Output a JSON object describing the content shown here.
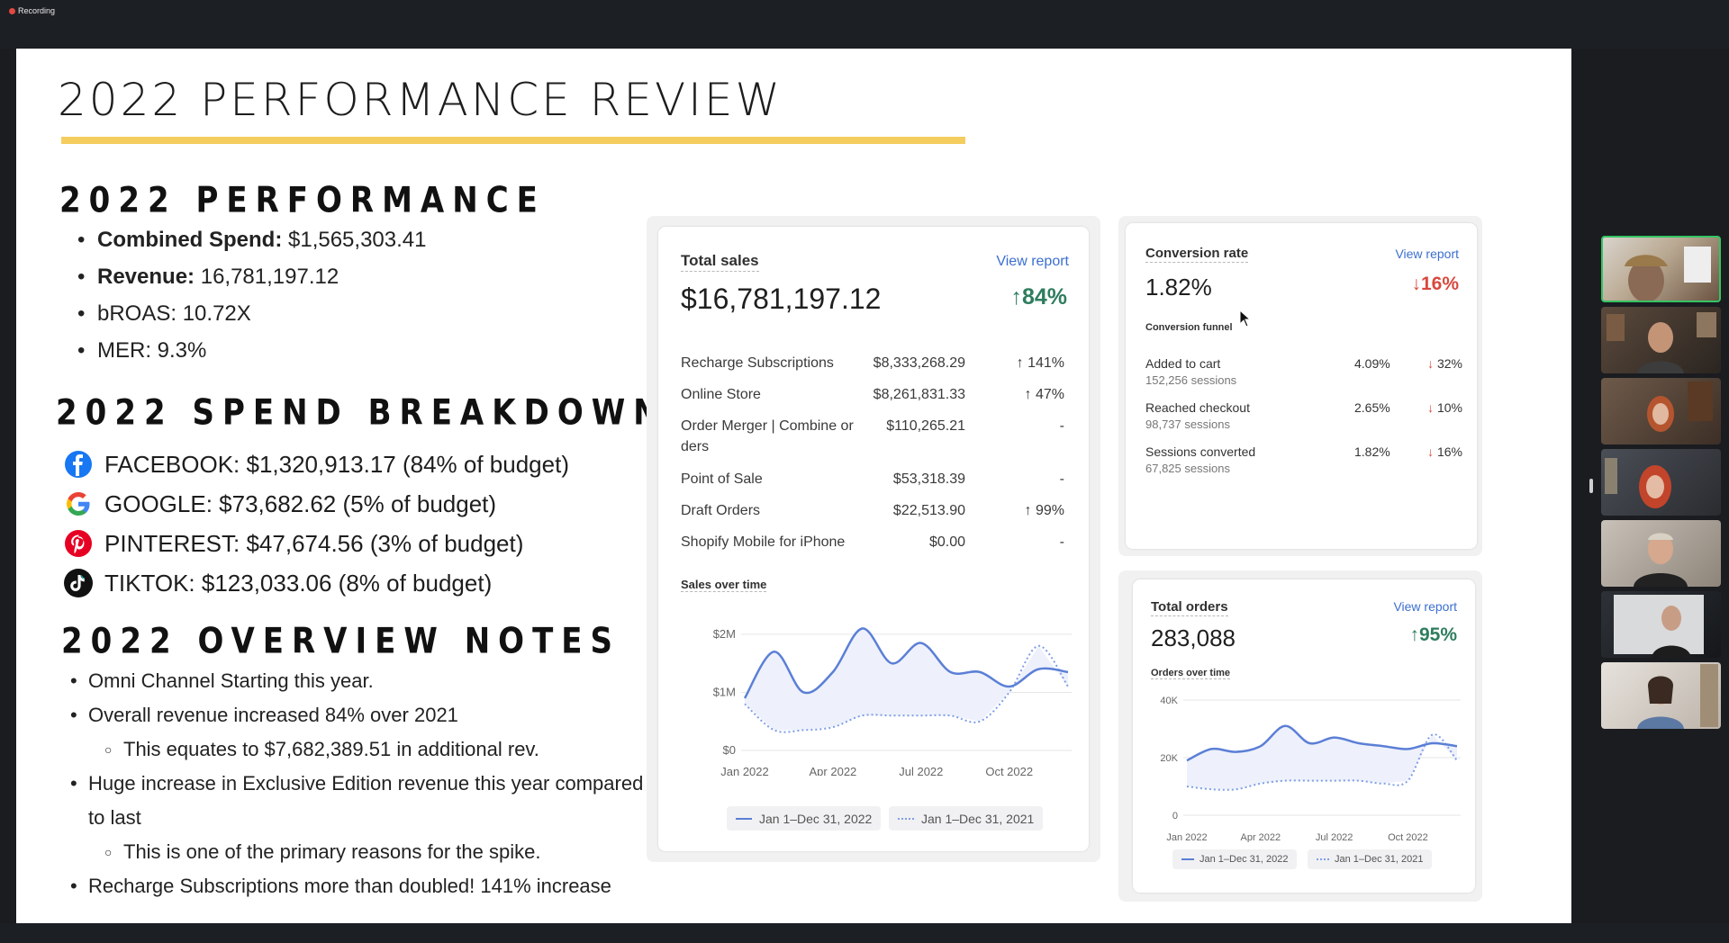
{
  "recording": {
    "label": "Recording"
  },
  "slide": {
    "title": "2022 PERFORMANCE REVIEW",
    "performance": {
      "heading": "2022 PERFORMANCE",
      "items": [
        {
          "label": "Combined Spend:",
          "value": " $1,565,303.41"
        },
        {
          "label": "Revenue:",
          "value": " 16,781,197.12"
        },
        {
          "label": "",
          "value": "bROAS: 10.72X"
        },
        {
          "label": "",
          "value": "MER: 9.3%"
        }
      ]
    },
    "spend_breakdown": {
      "heading": "2022 SPEND BREAKDOWN",
      "channels": [
        {
          "icon": "facebook-icon",
          "text": "FACEBOOK: $1,320,913.17 (84% of budget)"
        },
        {
          "icon": "google-icon",
          "text": "GOOGLE: $73,682.62 (5% of budget)"
        },
        {
          "icon": "pinterest-icon",
          "text": "PINTEREST: $47,674.56 (3% of budget)"
        },
        {
          "icon": "tiktok-icon",
          "text": "TIKTOK: $123,033.06  (8% of budget)"
        }
      ]
    },
    "overview_notes": {
      "heading": "2022 OVERVIEW NOTES",
      "items": [
        "Omni Channel Starting this year.",
        "Overall revenue increased 84% over 2021",
        "This equates to $7,682,389.51 in additional rev.",
        "Huge increase in Exclusive Edition revenue this year compared",
        "to last",
        "This is one of the primary reasons for the spike.",
        "Recharge Subscriptions more than doubled! 141% increase"
      ]
    }
  },
  "total_sales": {
    "label": "Total sales",
    "view_report": "View report",
    "value": "$16,781,197.12",
    "change": "84%",
    "breakdown": [
      {
        "name": "Recharge Subscriptions",
        "amount": "$8,333,268.29",
        "change": "141%",
        "dir": "up"
      },
      {
        "name": "Online Store",
        "amount": "$8,261,831.33",
        "change": "47%",
        "dir": "up"
      },
      {
        "name": "Order Merger | Combine or ders",
        "amount": "$110,265.21",
        "change": "-",
        "dir": "none"
      },
      {
        "name": "Point of Sale",
        "amount": "$53,318.39",
        "change": "-",
        "dir": "none"
      },
      {
        "name": "Draft Orders",
        "amount": "$22,513.90",
        "change": "99%",
        "dir": "up"
      },
      {
        "name": "Shopify Mobile for iPhone",
        "amount": "$0.00",
        "change": "-",
        "dir": "none"
      }
    ],
    "chart_label": "Sales over time",
    "legend": [
      "Jan 1–Dec 31, 2022",
      "Jan 1–Dec 31, 2021"
    ]
  },
  "conversion": {
    "label": "Conversion rate",
    "view_report": "View report",
    "value": "1.82%",
    "change": "16%",
    "funnel_label": "Conversion funnel",
    "funnel": [
      {
        "name": "Added to cart",
        "sessions": "152,256 sessions",
        "pct": "4.09%",
        "change": "32%"
      },
      {
        "name": "Reached checkout",
        "sessions": "98,737 sessions",
        "pct": "2.65%",
        "change": "10%"
      },
      {
        "name": "Sessions converted",
        "sessions": "67,825 sessions",
        "pct": "1.82%",
        "change": "16%"
      }
    ]
  },
  "total_orders": {
    "label": "Total orders",
    "view_report": "View report",
    "value": "283,088",
    "change": "95%",
    "chart_label": "Orders over time",
    "legend": [
      "Jan 1–Dec 31, 2022",
      "Jan 1–Dec 31, 2021"
    ]
  },
  "colors": {
    "accent_line": "#f5cd5f",
    "up": "#2e7d5e",
    "down": "#d8493d",
    "link": "#3b6fcf",
    "series_2022": "#5b7fd6",
    "series_2021": "#7f9ee6"
  },
  "chart_data": [
    {
      "type": "line",
      "title": "Sales over time",
      "x": [
        "Jan 2022",
        "Feb 2022",
        "Mar 2022",
        "Apr 2022",
        "May 2022",
        "Jun 2022",
        "Jul 2022",
        "Aug 2022",
        "Sep 2022",
        "Oct 2022",
        "Nov 2022",
        "Dec 2022"
      ],
      "x_ticks": [
        "Jan 2022",
        "Apr 2022",
        "Jul 2022",
        "Oct 2022"
      ],
      "y_ticks": [
        "$0",
        "$1M",
        "$2M"
      ],
      "ylim": [
        0,
        2200000
      ],
      "grid": true,
      "series": [
        {
          "name": "Jan 1–Dec 31, 2022",
          "style": "solid",
          "values": [
            900000,
            1700000,
            1000000,
            1350000,
            2100000,
            1500000,
            1850000,
            1350000,
            1350000,
            1100000,
            1400000,
            1350000
          ]
        },
        {
          "name": "Jan 1–Dec 31, 2021",
          "style": "dotted",
          "values": [
            800000,
            350000,
            350000,
            400000,
            600000,
            600000,
            600000,
            600000,
            500000,
            1000000,
            1800000,
            1100000
          ]
        }
      ]
    },
    {
      "type": "line",
      "title": "Orders over time",
      "x": [
        "Jan 2022",
        "Feb 2022",
        "Mar 2022",
        "Apr 2022",
        "May 2022",
        "Jun 2022",
        "Jul 2022",
        "Aug 2022",
        "Sep 2022",
        "Oct 2022",
        "Nov 2022",
        "Dec 2022"
      ],
      "x_ticks": [
        "Jan 2022",
        "Apr 2022",
        "Jul 2022",
        "Oct 2022"
      ],
      "y_ticks": [
        "0",
        "20K",
        "40K"
      ],
      "ylim": [
        0,
        40000
      ],
      "grid": true,
      "series": [
        {
          "name": "Jan 1–Dec 31, 2022",
          "style": "solid",
          "values": [
            19000,
            23000,
            22000,
            24000,
            31000,
            25000,
            27000,
            25000,
            24000,
            23000,
            25000,
            24000
          ]
        },
        {
          "name": "Jan 1–Dec 31, 2021",
          "style": "dotted",
          "values": [
            10000,
            9000,
            9000,
            11000,
            12000,
            12000,
            12000,
            12000,
            11000,
            12000,
            28000,
            19000
          ]
        }
      ]
    }
  ]
}
